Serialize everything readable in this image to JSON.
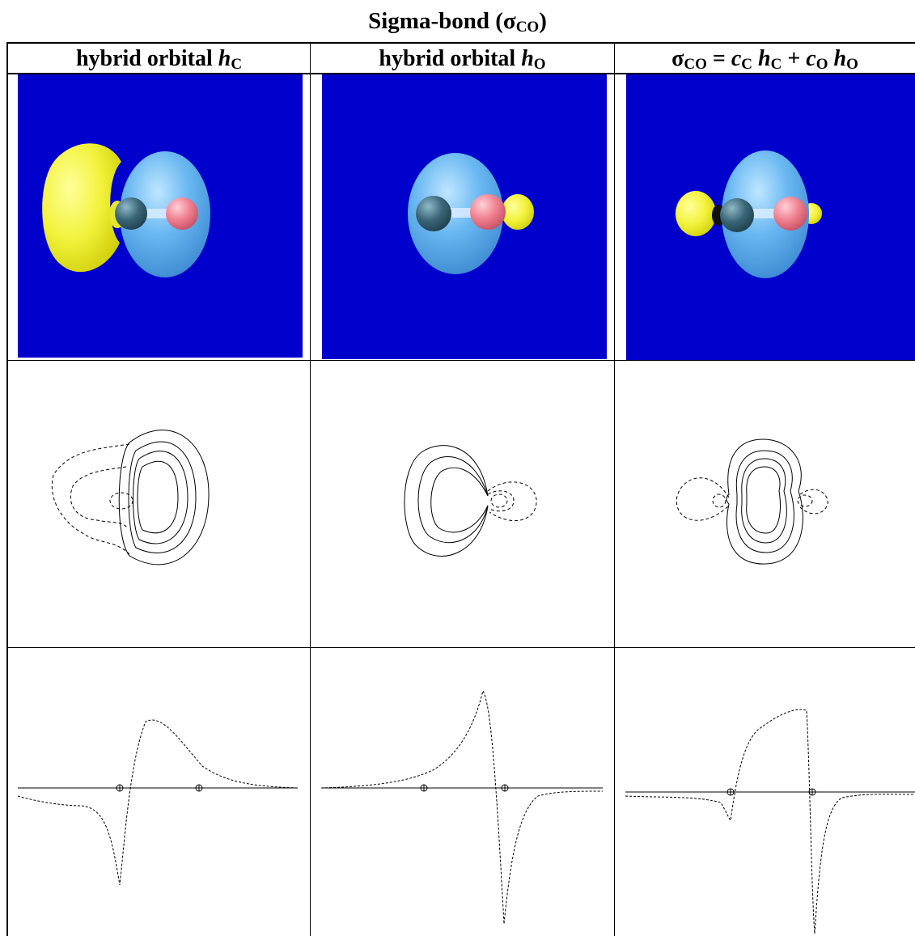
{
  "title": {
    "text": "Sigma-bond (σ",
    "sub": "CO",
    "close": ")"
  },
  "columns": [
    {
      "parts": [
        {
          "t": "hybrid orbital ",
          "s": "n"
        },
        {
          "t": "h",
          "s": "i"
        },
        {
          "t": "C",
          "s": "sub"
        }
      ]
    },
    {
      "parts": [
        {
          "t": "hybrid orbital ",
          "s": "n"
        },
        {
          "t": "h",
          "s": "i"
        },
        {
          "t": "O",
          "s": "sub"
        }
      ]
    },
    {
      "parts": [
        {
          "t": "σ",
          "s": "n"
        },
        {
          "t": "CO",
          "s": "sub"
        },
        {
          "t": " = ",
          "s": "n"
        },
        {
          "t": "c",
          "s": "i"
        },
        {
          "t": "C",
          "s": "sub"
        },
        {
          "t": " ",
          "s": "n"
        },
        {
          "t": "h",
          "s": "i"
        },
        {
          "t": "C",
          "s": "sub"
        },
        {
          "t": " + ",
          "s": "n"
        },
        {
          "t": "c",
          "s": "i"
        },
        {
          "t": "O",
          "s": "sub"
        },
        {
          "t": " ",
          "s": "n"
        },
        {
          "t": "h",
          "s": "i"
        },
        {
          "t": "O",
          "s": "sub"
        }
      ]
    }
  ],
  "colors": {
    "background_3d": "#0000cc",
    "positive_lobe": "#6ab8f2",
    "negative_lobe": "#f2f23c",
    "carbon_atom": "#3a6678",
    "oxygen_atom": "#f08090"
  },
  "rows": [
    "3d-isosurface",
    "contour-plot",
    "axial-profile"
  ]
}
